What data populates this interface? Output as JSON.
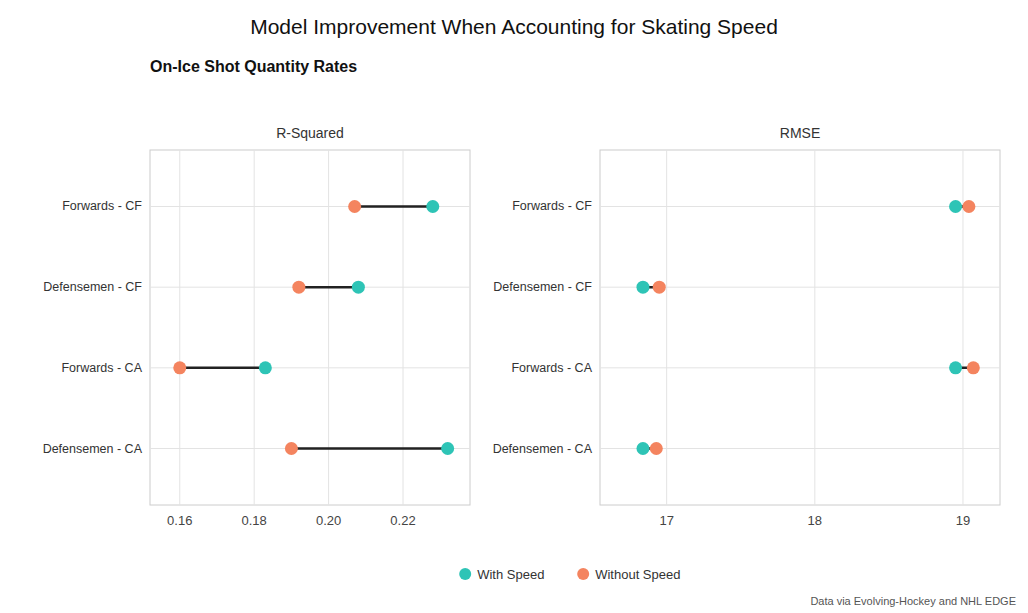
{
  "title": "Model Improvement When Accounting for Skating Speed",
  "subtitle": "On-Ice Shot Quantity Rates",
  "annotations": [
    "Data via Evolving-Hockey and NHL EDGE"
  ],
  "chart_data": [
    {
      "type": "dumbbell",
      "title": "R-Squared",
      "categories": [
        "Forwards - CF",
        "Defensemen - CF",
        "Forwards - CA",
        "Defensemen - CA"
      ],
      "series": [
        {
          "name": "With Speed",
          "color": "#2EC4B6",
          "values": [
            0.228,
            0.208,
            0.183,
            0.232
          ]
        },
        {
          "name": "Without Speed",
          "color": "#F4845F",
          "values": [
            0.207,
            0.192,
            0.16,
            0.19
          ]
        }
      ],
      "xlim": [
        0.152,
        0.238
      ],
      "xticks": [
        0.16,
        0.18,
        {
          "value": 0.2,
          "label": "0.20"
        },
        0.22
      ],
      "grid": true,
      "legend": "bottom"
    },
    {
      "type": "dumbbell",
      "title": "RMSE",
      "categories": [
        "Forwards - CF",
        "Defensemen - CF",
        "Forwards - CA",
        "Defensemen - CA"
      ],
      "series": [
        {
          "color": "#2EC4B6",
          "values": [
            18.95,
            16.84,
            18.95,
            16.84
          ]
        },
        {
          "color": "#F4845F",
          "values": [
            19.04,
            16.95,
            19.07,
            16.93
          ]
        }
      ],
      "xlim": [
        16.55,
        19.25
      ],
      "xticks": [
        17,
        18,
        19
      ],
      "grid": true
    }
  ]
}
